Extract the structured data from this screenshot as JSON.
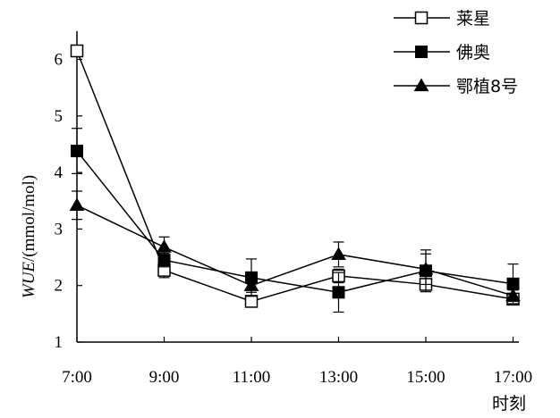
{
  "chart_data": {
    "type": "line",
    "title": "",
    "xlabel": "时刻",
    "ylabel_italic": "WUE",
    "ylabel_unit": "/(mmol/mol)",
    "categories": [
      "7:00",
      "9:00",
      "11:00",
      "13:00",
      "15:00",
      "17:00"
    ],
    "ylim": [
      1,
      6.5
    ],
    "yticks": [
      1,
      2,
      3,
      4,
      5,
      6
    ],
    "grid": false,
    "legend_position": "top-right",
    "series": [
      {
        "name": "莱星",
        "marker": "open-square",
        "values": [
          6.15,
          2.27,
          1.72,
          2.17,
          2.02,
          1.76
        ],
        "errors": [
          0.0,
          0.13,
          0.05,
          0.12,
          0.1,
          0.08
        ]
      },
      {
        "name": "佛奥",
        "marker": "filled-square",
        "values": [
          4.38,
          2.45,
          2.14,
          1.88,
          2.26,
          2.03
        ],
        "errors": [
          0.4,
          0.12,
          0.33,
          0.35,
          0.37,
          0.35
        ]
      },
      {
        "name": "鄂植8号",
        "marker": "filled-triangle",
        "values": [
          3.42,
          2.68,
          2.0,
          2.55,
          2.29,
          1.82
        ],
        "errors": [
          0.25,
          0.18,
          0.12,
          0.22,
          0.27,
          0.1
        ]
      }
    ]
  },
  "colors": {
    "line": "#000000",
    "background": "#ffffff"
  }
}
